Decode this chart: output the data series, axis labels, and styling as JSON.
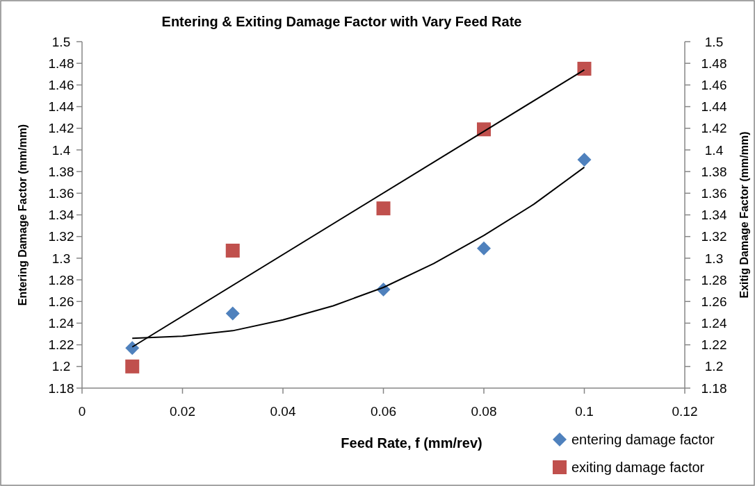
{
  "chart_data": {
    "type": "scatter",
    "title": "Entering & Exiting Damage Factor with Vary Feed Rate",
    "xlabel": "Feed Rate, f (mm/rev)",
    "ylabel": "Entering Damage Factor (mm/mm)",
    "y2label": "Exitig Damage Factor (mm/mm)",
    "xlim": [
      0,
      0.12
    ],
    "xticks": [
      0,
      0.02,
      0.04,
      0.06,
      0.08,
      0.1,
      0.12
    ],
    "ylim": [
      1.18,
      1.5
    ],
    "yticks": [
      1.18,
      1.2,
      1.22,
      1.24,
      1.26,
      1.28,
      1.3,
      1.32,
      1.34,
      1.36,
      1.38,
      1.4,
      1.42,
      1.44,
      1.46,
      1.48,
      1.5
    ],
    "y2lim": [
      1.18,
      1.5
    ],
    "y2ticks": [
      1.18,
      1.2,
      1.22,
      1.24,
      1.26,
      1.28,
      1.3,
      1.32,
      1.34,
      1.36,
      1.38,
      1.4,
      1.42,
      1.44,
      1.46,
      1.48,
      1.5
    ],
    "grid": false,
    "legend": "bottom right",
    "series": [
      {
        "name": "entering damage  factor",
        "marker": "diamond",
        "color": "#4f81bd",
        "x": [
          0.01,
          0.03,
          0.06,
          0.08,
          0.1
        ],
        "values": [
          1.217,
          1.249,
          1.271,
          1.309,
          1.391
        ]
      },
      {
        "name": "exiting damage  factor",
        "marker": "square",
        "color": "#c0504d",
        "x": [
          0.01,
          0.03,
          0.06,
          0.08,
          0.1
        ],
        "values": [
          1.2,
          1.307,
          1.346,
          1.419,
          1.475
        ]
      },
      {
        "type": "line",
        "marker": "none",
        "color": "#000000",
        "x": [
          0.01,
          0.02,
          0.03,
          0.04,
          0.05,
          0.06,
          0.07,
          0.08,
          0.09,
          0.1
        ],
        "values": [
          1.226,
          1.228,
          1.233,
          1.243,
          1.256,
          1.273,
          1.295,
          1.321,
          1.35,
          1.384
        ]
      },
      {
        "type": "line",
        "marker": "none",
        "color": "#000000",
        "x": [
          0.01,
          0.1
        ],
        "values": [
          1.218,
          1.474
        ]
      }
    ]
  }
}
